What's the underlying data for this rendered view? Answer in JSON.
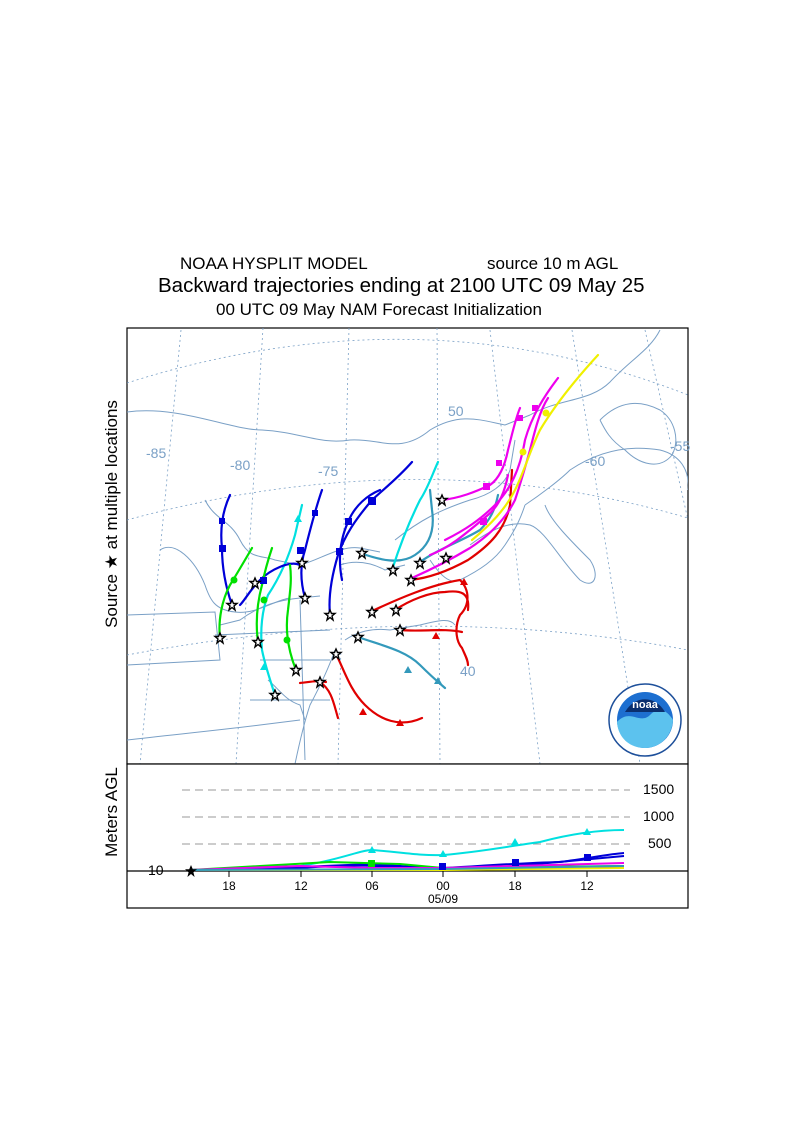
{
  "header": {
    "model": "NOAA HYSPLIT MODEL",
    "source": "source 10 m AGL",
    "title": "Backward trajectories ending at 2100 UTC 09 May 25",
    "init": "00 UTC 09 May     NAM   Forecast Initialization"
  },
  "map": {
    "side_label": "Source ★   at multiple locations",
    "longitude_labels": [
      "-85",
      "-80",
      "-75",
      "-60",
      "-55"
    ],
    "latitude_labels": [
      "50",
      "40"
    ],
    "logo_text": "noaa"
  },
  "height_panel": {
    "y_label": "Meters AGL",
    "y_ticks": [
      "1500",
      "1000",
      "500"
    ],
    "y_base": "10",
    "x_ticks": [
      "18",
      "12",
      "06",
      "00",
      "18",
      "12"
    ],
    "date_label": "05/09"
  },
  "colors": {
    "map_lines": "#7aa0c6",
    "red": "#e00000",
    "blue": "#0000d8",
    "green": "#00e000",
    "cyan": "#00e0e0",
    "steelblue": "#3399bb",
    "magenta": "#ee00ee",
    "yellow": "#f0f000"
  }
}
